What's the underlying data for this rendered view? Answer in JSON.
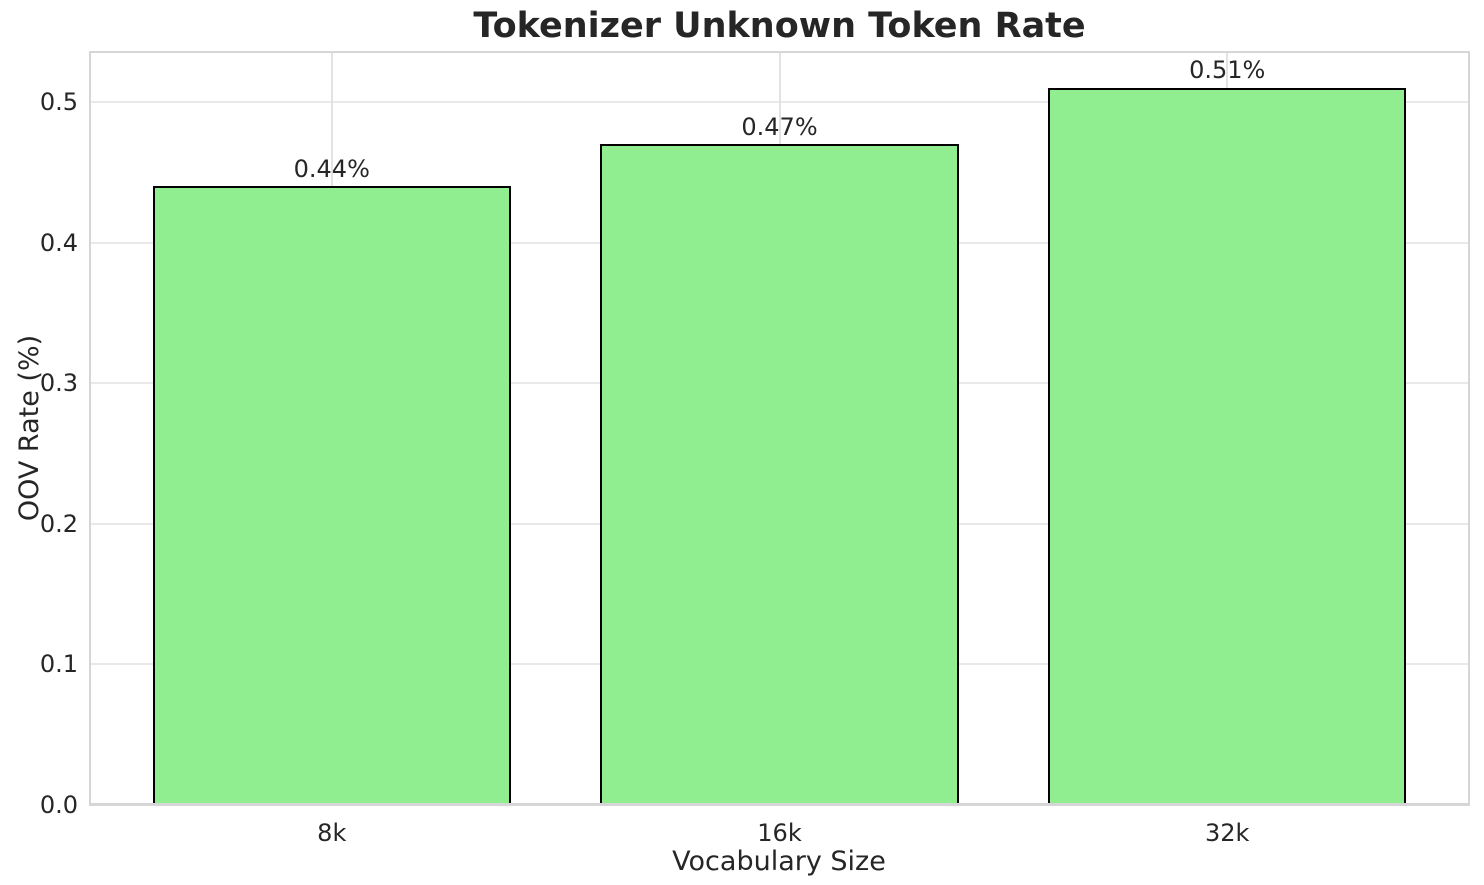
{
  "chart_data": {
    "type": "bar",
    "title": "Tokenizer Unknown Token Rate",
    "xlabel": "Vocabulary Size",
    "ylabel": "OOV Rate (%)",
    "categories": [
      "8k",
      "16k",
      "32k"
    ],
    "values": [
      0.44,
      0.47,
      0.51
    ],
    "bar_labels": [
      "0.44%",
      "0.47%",
      "0.51%"
    ],
    "yticks": [
      0.0,
      0.1,
      0.2,
      0.3,
      0.4,
      0.5
    ],
    "ytick_labels": [
      "0.0",
      "0.1",
      "0.2",
      "0.3",
      "0.4",
      "0.5"
    ],
    "ylim": [
      0,
      0.5355
    ],
    "xlim": [
      -0.54,
      2.54
    ],
    "bar_width_units": 0.8,
    "grid": true,
    "legend": null,
    "colors": {
      "bar_fill": "#90EE90",
      "bar_edge": "#000000",
      "grid_line": "#E9E9E9",
      "vgrid_line": "#E3E3E3",
      "spine": "#D6D6D6",
      "text": "#262626"
    }
  }
}
